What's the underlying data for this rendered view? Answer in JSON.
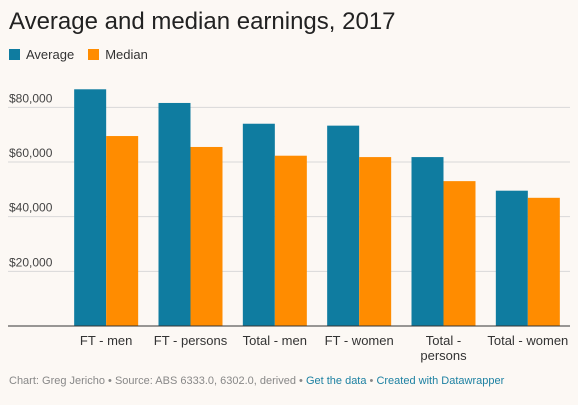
{
  "title": "Average and median earnings, 2017",
  "colors": {
    "average": "#0f7ca0",
    "median": "#ff8c00",
    "grid": "#d9d9d9",
    "axis": "#333333"
  },
  "chart_data": {
    "type": "bar",
    "title": "Average and median earnings, 2017",
    "categories": [
      [
        "FT - men"
      ],
      [
        "FT - persons"
      ],
      [
        "Total - men"
      ],
      [
        "FT - women"
      ],
      [
        "Total -",
        "persons"
      ],
      [
        "Total - women"
      ]
    ],
    "series": [
      {
        "name": "Average",
        "values": [
          86600,
          81600,
          74000,
          73300,
          61800,
          49500
        ]
      },
      {
        "name": "Median",
        "values": [
          69500,
          65500,
          62300,
          61800,
          53000,
          46900
        ]
      }
    ],
    "ylim": [
      0,
      90000
    ],
    "yticks": [
      20000,
      40000,
      60000,
      80000
    ],
    "ytick_labels": [
      "$20,000",
      "$40,000",
      "$60,000",
      "$80,000"
    ],
    "grid": true,
    "legend_position": "top-left",
    "xlabel": "",
    "ylabel": ""
  },
  "footer": {
    "credit": "Chart: Greg Jericho • Source: ABS 6333.0, 6302.0, derived • ",
    "get_data": "Get the data",
    "separator": " • ",
    "created_with": "Created with Datawrapper"
  }
}
